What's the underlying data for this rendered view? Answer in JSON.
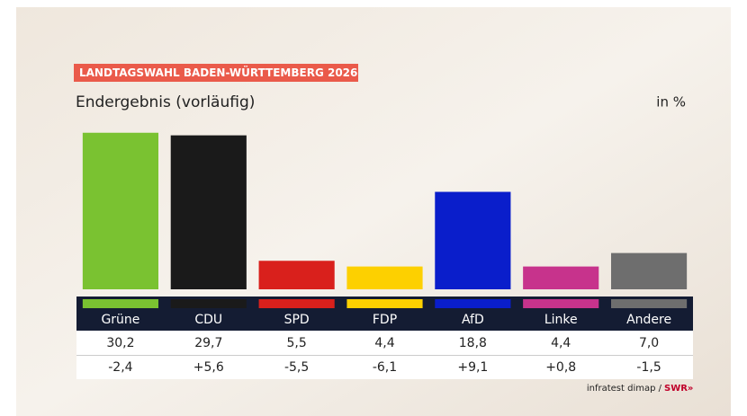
{
  "chart_data": {
    "type": "bar",
    "title": "LANDTAGSWAHL BADEN-WÜRTTEMBERG 2026",
    "subtitle": "Endergebnis (vorläufig)",
    "unit_label": "in %",
    "categories": [
      "Grüne",
      "CDU",
      "SPD",
      "FDP",
      "AfD",
      "Linke",
      "Andere"
    ],
    "values": [
      30.2,
      29.7,
      5.5,
      4.4,
      18.8,
      4.4,
      7.0
    ],
    "value_labels": [
      "30,2",
      "29,7",
      "5,5",
      "4,4",
      "18,8",
      "4,4",
      "7,0"
    ],
    "changes": [
      "-2,4",
      "+5,6",
      "-5,5",
      "-6,1",
      "+9,1",
      "+0,8",
      "-1,5"
    ],
    "colors": [
      "#7ac231",
      "#1a1a1a",
      "#d9201c",
      "#fdd000",
      "#0a1ecb",
      "#c7338c",
      "#6e6e6e"
    ],
    "source": "infratest dimap /",
    "brand": "SWR»"
  }
}
